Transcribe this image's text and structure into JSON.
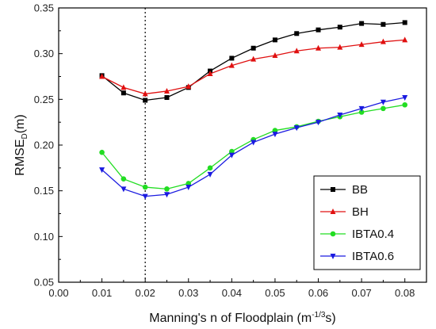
{
  "chart_data": {
    "type": "line",
    "xlabel_main": "Manning's n of Floodplain (m",
    "xlabel_sup": "-1/3",
    "xlabel_end": "s)",
    "ylabel_main": "RMSE",
    "ylabel_sub": "D",
    "ylabel_end": "(m)",
    "xlim": [
      0.0,
      0.085
    ],
    "ylim": [
      0.05,
      0.35
    ],
    "x_ticks": [
      0.0,
      0.01,
      0.02,
      0.03,
      0.04,
      0.05,
      0.06,
      0.07,
      0.08
    ],
    "x_tick_labels": [
      "0.00",
      "0.01",
      "0.02",
      "0.03",
      "0.04",
      "0.05",
      "0.06",
      "0.07",
      "0.08"
    ],
    "y_ticks": [
      0.05,
      0.1,
      0.15,
      0.2,
      0.25,
      0.3,
      0.35
    ],
    "y_tick_labels": [
      "0.05",
      "0.10",
      "0.15",
      "0.20",
      "0.25",
      "0.30",
      "0.35"
    ],
    "vline_x": 0.02,
    "legend_position": "right",
    "x": [
      0.01,
      0.015,
      0.02,
      0.025,
      0.03,
      0.035,
      0.04,
      0.045,
      0.05,
      0.055,
      0.06,
      0.065,
      0.07,
      0.075,
      0.08
    ],
    "series": [
      {
        "name": "BB",
        "color": "#000000",
        "marker": "square",
        "values": [
          0.276,
          0.257,
          0.249,
          0.252,
          0.263,
          0.281,
          0.295,
          0.306,
          0.315,
          0.322,
          0.326,
          0.329,
          0.333,
          0.332,
          0.334
        ]
      },
      {
        "name": "BH",
        "color": "#e01010",
        "marker": "triangle-up",
        "values": [
          0.275,
          0.263,
          0.256,
          0.259,
          0.264,
          0.278,
          0.287,
          0.294,
          0.298,
          0.303,
          0.306,
          0.307,
          0.31,
          0.313,
          0.315
        ]
      },
      {
        "name": "IBTA0.4",
        "color": "#22dd22",
        "marker": "circle",
        "values": [
          0.192,
          0.163,
          0.154,
          0.152,
          0.158,
          0.175,
          0.193,
          0.206,
          0.216,
          0.22,
          0.226,
          0.231,
          0.236,
          0.24,
          0.244
        ]
      },
      {
        "name": "IBTA0.6",
        "color": "#1a1ae0",
        "marker": "triangle-down",
        "values": [
          0.173,
          0.152,
          0.144,
          0.146,
          0.154,
          0.168,
          0.189,
          0.203,
          0.212,
          0.219,
          0.225,
          0.233,
          0.24,
          0.247,
          0.252
        ]
      }
    ]
  }
}
